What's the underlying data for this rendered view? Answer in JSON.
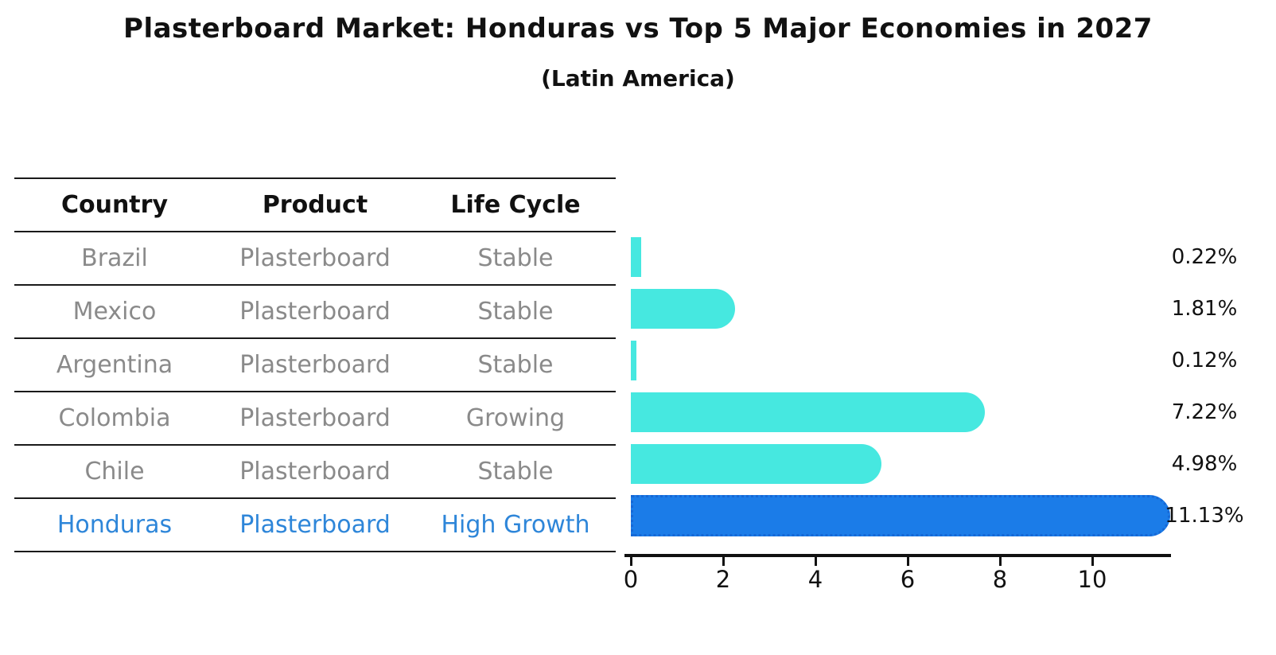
{
  "title": "Plasterboard Market: Honduras vs Top 5 Major Economies in 2027",
  "subtitle": "(Latin America)",
  "table": {
    "headers": {
      "country": "Country",
      "product": "Product",
      "life_cycle": "Life Cycle"
    },
    "rows": [
      {
        "country": "Brazil",
        "product": "Plasterboard",
        "life_cycle": "Stable",
        "highlighted": false
      },
      {
        "country": "Mexico",
        "product": "Plasterboard",
        "life_cycle": "Stable",
        "highlighted": false
      },
      {
        "country": "Argentina",
        "product": "Plasterboard",
        "life_cycle": "Stable",
        "highlighted": false
      },
      {
        "country": "Colombia",
        "product": "Plasterboard",
        "life_cycle": "Growing",
        "highlighted": false
      },
      {
        "country": "Chile",
        "product": "Plasterboard",
        "life_cycle": "Stable",
        "highlighted": false
      },
      {
        "country": "Honduras",
        "product": "Plasterboard",
        "life_cycle": "High Growth",
        "highlighted": true
      }
    ]
  },
  "chart_data": {
    "type": "bar",
    "orientation": "horizontal",
    "title": "Plasterboard Market: Honduras vs Top 5 Major Economies in 2027 (Latin America)",
    "categories": [
      "Brazil",
      "Mexico",
      "Argentina",
      "Colombia",
      "Chile",
      "Honduras"
    ],
    "values": [
      0.22,
      1.81,
      0.12,
      7.22,
      4.98,
      11.13
    ],
    "value_labels": [
      "0.22%",
      "1.81%",
      "0.12%",
      "7.22%",
      "4.98%",
      "11.13%"
    ],
    "x_ticks": [
      0,
      2,
      4,
      6,
      8,
      10
    ],
    "xlim": [
      0,
      11.7
    ],
    "grid": false,
    "legend": false,
    "bar_color": "#46E8E0",
    "highlight_color": "#1B7CE8",
    "highlight_index": 5,
    "highlighted_category": "Honduras"
  },
  "colors": {
    "text": "#111111",
    "muted_text": "#8a8a8a",
    "highlight_text": "#2E86D9",
    "line": "#1a1a1a"
  }
}
